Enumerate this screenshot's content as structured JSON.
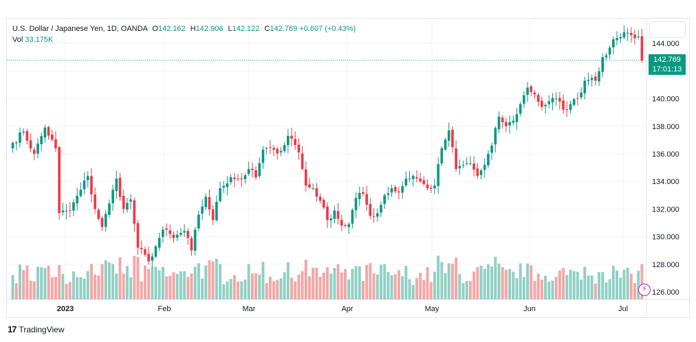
{
  "legend": {
    "title": "U.S. Dollar / Japanese Yen, 1D, OANDA",
    "o_label": "O",
    "o_value": "142.162",
    "h_label": "H",
    "h_value": "142.906",
    "l_label": "L",
    "l_value": "142.122",
    "c_label": "C",
    "c_value": "142.769",
    "change": "+0.607 (+0.43%)",
    "vol_label": "Vol",
    "vol_value": "33.175K"
  },
  "price_tag": {
    "price": "142.769",
    "countdown": "17:01:13"
  },
  "brand": {
    "logo": "17",
    "name": "TradingView"
  },
  "colors": {
    "up": "#089981",
    "down": "#f23645",
    "up_vol": "#8fd0c4",
    "down_vol": "#f4a6a6",
    "grid": "#f0f3fa"
  },
  "chart_data": {
    "type": "candlestick",
    "symbol": "USDJPY",
    "interval": "1D",
    "y_ticks": [
      "126.000",
      "128.000",
      "130.000",
      "132.000",
      "134.000",
      "136.000",
      "138.000",
      "140.000",
      "142.000",
      "144.000"
    ],
    "x_ticks": [
      "2023",
      "Feb",
      "Mar",
      "Apr",
      "May",
      "Jun",
      "Jul"
    ],
    "ylim": [
      125.5,
      145.8
    ],
    "last_price": 142.769,
    "anchors": [
      [
        0,
        136.8
      ],
      [
        3,
        137.6
      ],
      [
        6,
        136.0
      ],
      [
        9,
        137.9
      ],
      [
        12,
        136.4
      ],
      [
        13,
        131.7
      ],
      [
        16,
        131.9
      ],
      [
        19,
        133.4
      ],
      [
        21,
        134.4
      ],
      [
        23,
        132.0
      ],
      [
        25,
        130.7
      ],
      [
        27,
        132.4
      ],
      [
        29,
        134.2
      ],
      [
        31,
        132.0
      ],
      [
        33,
        132.7
      ],
      [
        35,
        129.2
      ],
      [
        38,
        128.2
      ],
      [
        40,
        129.3
      ],
      [
        42,
        130.5
      ],
      [
        45,
        129.9
      ],
      [
        48,
        130.4
      ],
      [
        50,
        129.0
      ],
      [
        52,
        131.6
      ],
      [
        54,
        132.9
      ],
      [
        56,
        131.2
      ],
      [
        58,
        133.5
      ],
      [
        61,
        134.3
      ],
      [
        64,
        134.2
      ],
      [
        66,
        134.9
      ],
      [
        68,
        134.3
      ],
      [
        70,
        136.3
      ],
      [
        73,
        136.3
      ],
      [
        75,
        136.2
      ],
      [
        77,
        137.3
      ],
      [
        78,
        137.1
      ],
      [
        80,
        136.1
      ],
      [
        82,
        133.7
      ],
      [
        84,
        133.5
      ],
      [
        86,
        132.6
      ],
      [
        88,
        131.2
      ],
      [
        90,
        131.9
      ],
      [
        92,
        130.8
      ],
      [
        94,
        130.9
      ],
      [
        96,
        132.8
      ],
      [
        98,
        133.1
      ],
      [
        100,
        131.5
      ],
      [
        102,
        131.7
      ],
      [
        104,
        133.0
      ],
      [
        106,
        133.5
      ],
      [
        108,
        133.2
      ],
      [
        110,
        134.2
      ],
      [
        112,
        134.4
      ],
      [
        114,
        134.0
      ],
      [
        116,
        133.5
      ],
      [
        118,
        133.7
      ],
      [
        120,
        136.4
      ],
      [
        122,
        137.7
      ],
      [
        124,
        134.9
      ],
      [
        126,
        135.2
      ],
      [
        128,
        135.3
      ],
      [
        130,
        134.4
      ],
      [
        132,
        135.2
      ],
      [
        134,
        136.6
      ],
      [
        136,
        138.7
      ],
      [
        138,
        138.0
      ],
      [
        140,
        138.4
      ],
      [
        142,
        139.6
      ],
      [
        144,
        140.8
      ],
      [
        146,
        140.3
      ],
      [
        148,
        139.4
      ],
      [
        150,
        139.8
      ],
      [
        152,
        140.0
      ],
      [
        154,
        139.2
      ],
      [
        156,
        139.6
      ],
      [
        158,
        140.0
      ],
      [
        160,
        141.3
      ],
      [
        162,
        141.5
      ],
      [
        163,
        141.3
      ],
      [
        165,
        143.0
      ],
      [
        167,
        143.7
      ],
      [
        169,
        144.4
      ],
      [
        171,
        144.8
      ],
      [
        173,
        144.6
      ],
      [
        175,
        144.5
      ],
      [
        176,
        142.8
      ]
    ],
    "volume_range": [
      0,
      1.0
    ]
  }
}
